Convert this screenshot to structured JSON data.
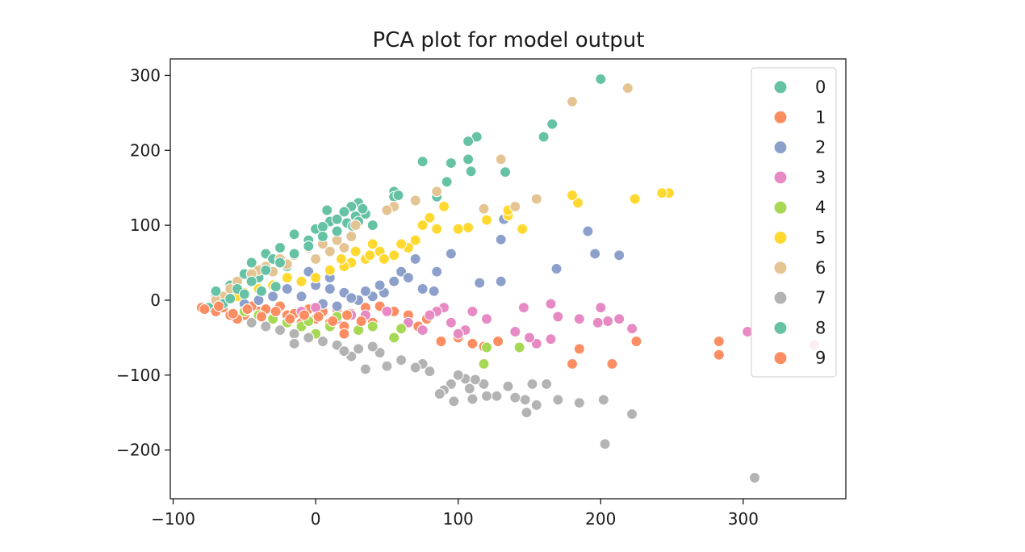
{
  "chart_data": {
    "type": "scatter",
    "title": "PCA plot for model output",
    "xlabel": "",
    "ylabel": "",
    "xlim": [
      -102,
      372
    ],
    "ylim": [
      -265,
      322
    ],
    "xticks": [
      -100,
      0,
      100,
      200,
      300
    ],
    "yticks": [
      -200,
      -100,
      0,
      100,
      200,
      300
    ],
    "xtick_labels": [
      "−100",
      "0",
      "100",
      "200",
      "300"
    ],
    "ytick_labels": [
      "−200",
      "−100",
      "0",
      "100",
      "200",
      "300"
    ],
    "grid": false,
    "legend_position": "top-right",
    "series": [
      {
        "name": "0",
        "color": "#66c2a5",
        "points": [
          [
            200,
            295
          ],
          [
            166,
            235
          ],
          [
            160,
            218
          ],
          [
            113,
            218
          ],
          [
            107,
            212
          ],
          [
            75,
            185
          ],
          [
            95,
            183
          ],
          [
            107,
            188
          ],
          [
            109,
            172
          ],
          [
            133,
            171
          ],
          [
            92,
            158
          ],
          [
            55,
            145
          ],
          [
            85,
            138
          ],
          [
            55,
            138
          ],
          [
            30,
            130
          ],
          [
            25,
            125
          ],
          [
            8,
            120
          ],
          [
            20,
            118
          ],
          [
            35,
            115
          ],
          [
            10,
            105
          ],
          [
            40,
            100
          ],
          [
            0,
            95
          ],
          [
            -15,
            88
          ],
          [
            -5,
            80
          ],
          [
            -25,
            70
          ],
          [
            -35,
            62
          ],
          [
            -45,
            50
          ],
          [
            -50,
            35
          ],
          [
            -60,
            20
          ],
          [
            -70,
            5
          ],
          [
            -75,
            -10
          ],
          [
            -40,
            30
          ],
          [
            -20,
            45
          ],
          [
            -30,
            55
          ],
          [
            5,
            98
          ],
          [
            15,
            108
          ],
          [
            22,
            103
          ],
          [
            28,
            112
          ],
          [
            33,
            122
          ],
          [
            26,
            99
          ],
          [
            30,
            105
          ]
        ]
      },
      {
        "name": "1",
        "color": "#fc8d62",
        "points": [
          [
            -80,
            -10
          ],
          [
            -70,
            -15
          ],
          [
            -60,
            -20
          ],
          [
            -50,
            -20
          ],
          [
            -40,
            -15
          ],
          [
            -30,
            -25
          ],
          [
            -20,
            -20
          ],
          [
            -10,
            -30
          ],
          [
            0,
            -25
          ],
          [
            10,
            -30
          ],
          [
            20,
            -35
          ],
          [
            30,
            -40
          ],
          [
            40,
            -30
          ],
          [
            55,
            -15
          ],
          [
            65,
            -20
          ],
          [
            78,
            -25
          ],
          [
            85,
            -15
          ],
          [
            100,
            -50
          ],
          [
            110,
            -58
          ],
          [
            118,
            -62
          ],
          [
            128,
            -55
          ],
          [
            180,
            -85
          ],
          [
            185,
            -65
          ],
          [
            208,
            -85
          ],
          [
            225,
            -55
          ],
          [
            283,
            -55
          ],
          [
            283,
            -73
          ],
          [
            -65,
            -10
          ],
          [
            -55,
            -25
          ],
          [
            -45,
            -8
          ],
          [
            -35,
            -12
          ],
          [
            -25,
            -8
          ],
          [
            -15,
            -18
          ],
          [
            -5,
            -12
          ],
          [
            5,
            -15
          ],
          [
            15,
            -12
          ],
          [
            25,
            -18
          ],
          [
            35,
            -10
          ],
          [
            45,
            -8
          ],
          [
            20,
            -45
          ],
          [
            88,
            -55
          ],
          [
            72,
            -35
          ]
        ]
      },
      {
        "name": "2",
        "color": "#8da0cb",
        "points": [
          [
            191,
            92
          ],
          [
            196,
            62
          ],
          [
            213,
            60
          ],
          [
            169,
            42
          ],
          [
            132,
            108
          ],
          [
            130,
            81
          ],
          [
            115,
            23
          ],
          [
            130,
            25
          ],
          [
            95,
            62
          ],
          [
            85,
            38
          ],
          [
            70,
            55
          ],
          [
            60,
            38
          ],
          [
            55,
            25
          ],
          [
            48,
            10
          ],
          [
            40,
            5
          ],
          [
            30,
            0
          ],
          [
            20,
            10
          ],
          [
            10,
            15
          ],
          [
            0,
            20
          ],
          [
            -10,
            25
          ],
          [
            -20,
            15
          ],
          [
            -30,
            5
          ],
          [
            -40,
            0
          ],
          [
            -50,
            -5
          ],
          [
            -10,
            5
          ],
          [
            5,
            -5
          ],
          [
            15,
            -8
          ],
          [
            25,
            3
          ],
          [
            35,
            12
          ],
          [
            45,
            20
          ],
          [
            75,
            15
          ],
          [
            83,
            12
          ],
          [
            65,
            30
          ],
          [
            -5,
            38
          ],
          [
            10,
            30
          ],
          [
            -20,
            30
          ]
        ]
      },
      {
        "name": "3",
        "color": "#e78ac3",
        "points": [
          [
            350,
            -60
          ],
          [
            303,
            -42
          ],
          [
            222,
            -38
          ],
          [
            213,
            -25
          ],
          [
            205,
            -28
          ],
          [
            198,
            -30
          ],
          [
            200,
            -10
          ],
          [
            185,
            -25
          ],
          [
            170,
            -22
          ],
          [
            165,
            -5
          ],
          [
            165,
            -52
          ],
          [
            155,
            -58
          ],
          [
            146,
            -10
          ],
          [
            150,
            -50
          ],
          [
            140,
            -42
          ],
          [
            120,
            -25
          ],
          [
            105,
            -40
          ],
          [
            100,
            -45
          ],
          [
            95,
            -30
          ],
          [
            90,
            -10
          ],
          [
            75,
            -40
          ],
          [
            65,
            -30
          ],
          [
            50,
            -15
          ],
          [
            35,
            -20
          ],
          [
            25,
            -20
          ],
          [
            15,
            -25
          ],
          [
            0,
            -10
          ],
          [
            -10,
            -15
          ],
          [
            85,
            -15
          ],
          [
            110,
            -15
          ],
          [
            80,
            -20
          ]
        ]
      },
      {
        "name": "4",
        "color": "#a6d854",
        "points": [
          [
            118,
            -85
          ],
          [
            143,
            -63
          ],
          [
            120,
            -63
          ],
          [
            55,
            -50
          ],
          [
            60,
            -38
          ],
          [
            30,
            -40
          ],
          [
            10,
            -35
          ],
          [
            0,
            -45
          ],
          [
            -10,
            -35
          ],
          [
            -20,
            -30
          ],
          [
            -30,
            -25
          ],
          [
            -40,
            -20
          ],
          [
            -50,
            -15
          ],
          [
            -5,
            -28
          ],
          [
            15,
            -22
          ],
          [
            40,
            -35
          ]
        ]
      },
      {
        "name": "5",
        "color": "#ffd92f",
        "points": [
          [
            248,
            143
          ],
          [
            243,
            143
          ],
          [
            224,
            135
          ],
          [
            184,
            130
          ],
          [
            180,
            140
          ],
          [
            145,
            95
          ],
          [
            135,
            113
          ],
          [
            135,
            120
          ],
          [
            120,
            107
          ],
          [
            107,
            97
          ],
          [
            100,
            95
          ],
          [
            85,
            95
          ],
          [
            90,
            125
          ],
          [
            80,
            110
          ],
          [
            75,
            100
          ],
          [
            70,
            80
          ],
          [
            65,
            70
          ],
          [
            60,
            75
          ],
          [
            55,
            60
          ],
          [
            45,
            65
          ],
          [
            40,
            75
          ],
          [
            35,
            55
          ],
          [
            25,
            50
          ],
          [
            20,
            45
          ],
          [
            10,
            40
          ],
          [
            0,
            30
          ],
          [
            -10,
            25
          ],
          [
            -20,
            30
          ],
          [
            -30,
            20
          ],
          [
            -40,
            15
          ],
          [
            -50,
            10
          ],
          [
            -55,
            5
          ],
          [
            48,
            55
          ],
          [
            38,
            60
          ],
          [
            28,
            65
          ],
          [
            18,
            55
          ]
        ]
      },
      {
        "name": "6",
        "color": "#e5c494",
        "points": [
          [
            219,
            283
          ],
          [
            180,
            265
          ],
          [
            130,
            188
          ],
          [
            155,
            135
          ],
          [
            140,
            125
          ],
          [
            118,
            122
          ],
          [
            85,
            145
          ],
          [
            70,
            133
          ],
          [
            55,
            125
          ],
          [
            50,
            120
          ],
          [
            28,
            100
          ],
          [
            25,
            85
          ],
          [
            15,
            80
          ],
          [
            5,
            75
          ],
          [
            -5,
            70
          ],
          [
            -15,
            60
          ],
          [
            -25,
            55
          ],
          [
            -35,
            45
          ],
          [
            -40,
            40
          ],
          [
            -45,
            35
          ],
          [
            -55,
            25
          ],
          [
            -60,
            15
          ],
          [
            -65,
            5
          ],
          [
            -70,
            0
          ],
          [
            -30,
            38
          ],
          [
            -20,
            48
          ],
          [
            0,
            55
          ],
          [
            20,
            70
          ],
          [
            10,
            65
          ]
        ]
      },
      {
        "name": "7",
        "color": "#b3b3b3",
        "points": [
          [
            308,
            -237
          ],
          [
            203,
            -192
          ],
          [
            222,
            -152
          ],
          [
            202,
            -133
          ],
          [
            185,
            -137
          ],
          [
            170,
            -133
          ],
          [
            155,
            -140
          ],
          [
            148,
            -150
          ],
          [
            147,
            -133
          ],
          [
            140,
            -130
          ],
          [
            127,
            -128
          ],
          [
            120,
            -128
          ],
          [
            110,
            -132
          ],
          [
            108,
            -118
          ],
          [
            105,
            -105
          ],
          [
            100,
            -100
          ],
          [
            95,
            -112
          ],
          [
            90,
            -120
          ],
          [
            80,
            -95
          ],
          [
            75,
            -85
          ],
          [
            70,
            -90
          ],
          [
            60,
            -80
          ],
          [
            50,
            -88
          ],
          [
            45,
            -70
          ],
          [
            40,
            -62
          ],
          [
            30,
            -65
          ],
          [
            25,
            -75
          ],
          [
            15,
            -60
          ],
          [
            5,
            -55
          ],
          [
            -5,
            -50
          ],
          [
            -15,
            -45
          ],
          [
            -25,
            -40
          ],
          [
            -35,
            -35
          ],
          [
            -45,
            -30
          ],
          [
            162,
            -112
          ],
          [
            152,
            -112
          ],
          [
            135,
            -115
          ],
          [
            118,
            -112
          ],
          [
            112,
            -106
          ],
          [
            87,
            -125
          ],
          [
            97,
            -135
          ],
          [
            -15,
            -58
          ],
          [
            20,
            -68
          ],
          [
            35,
            -92
          ]
        ]
      },
      {
        "name": "8",
        "color": "#66c2a5",
        "points": [
          [
            58,
            140
          ],
          [
            -70,
            12
          ],
          [
            -65,
            -5
          ],
          [
            -55,
            15
          ],
          [
            -45,
            25
          ],
          [
            -35,
            40
          ],
          [
            -25,
            50
          ],
          [
            -15,
            62
          ],
          [
            -5,
            72
          ],
          [
            5,
            85
          ],
          [
            15,
            92
          ],
          [
            -60,
            2
          ],
          [
            -50,
            8
          ],
          [
            -38,
            12
          ],
          [
            -28,
            18
          ]
        ]
      },
      {
        "name": "9",
        "color": "#fc8d62",
        "points": [
          [
            -78,
            -12
          ],
          [
            -68,
            -8
          ],
          [
            -58,
            -18
          ],
          [
            -48,
            -12
          ],
          [
            -38,
            -22
          ],
          [
            -28,
            -15
          ],
          [
            -18,
            -25
          ],
          [
            -8,
            -20
          ],
          [
            2,
            -22
          ],
          [
            12,
            -28
          ],
          [
            22,
            -20
          ],
          [
            32,
            -28
          ]
        ]
      }
    ]
  }
}
